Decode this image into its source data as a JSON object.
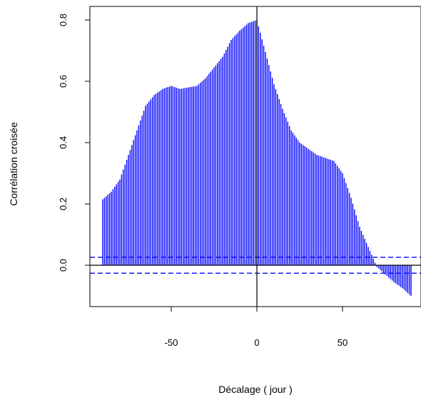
{
  "chart_data": {
    "type": "bar",
    "xlabel": "Décalage ( jour  )",
    "ylabel": "Corrélation croisée",
    "xlim": [
      -95,
      95
    ],
    "ylim": [
      -0.13,
      0.82
    ],
    "x_ticks": [
      -50,
      0,
      50
    ],
    "x_tick_labels": [
      "-50",
      "0",
      "50"
    ],
    "y_ticks": [
      0.0,
      0.2,
      0.4,
      0.6,
      0.8
    ],
    "y_tick_labels": [
      "0.0",
      "0.2",
      "0.4",
      "0.6",
      "0.8"
    ],
    "confidence_bounds": [
      0.026,
      -0.026
    ],
    "reference_lines": {
      "horizontal": 0,
      "vertical": 0
    },
    "bar_color": "#0000ff",
    "bound_color": "#0000ff",
    "lag_range": [
      -90,
      90
    ],
    "curve_knots": {
      "lag": [
        -90,
        -85,
        -80,
        -75,
        -70,
        -65,
        -60,
        -55,
        -50,
        -45,
        -40,
        -35,
        -30,
        -25,
        -20,
        -15,
        -10,
        -5,
        0,
        5,
        10,
        15,
        20,
        25,
        30,
        35,
        40,
        45,
        50,
        55,
        60,
        65,
        70,
        75,
        80,
        85,
        90
      ],
      "acf": [
        0.215,
        0.24,
        0.28,
        0.36,
        0.44,
        0.52,
        0.555,
        0.575,
        0.585,
        0.575,
        0.58,
        0.585,
        0.61,
        0.645,
        0.68,
        0.735,
        0.765,
        0.79,
        0.8,
        0.695,
        0.59,
        0.51,
        0.44,
        0.4,
        0.38,
        0.36,
        0.35,
        0.34,
        0.3,
        0.22,
        0.125,
        0.06,
        -0.005,
        -0.03,
        -0.055,
        -0.075,
        -0.1
      ]
    }
  }
}
